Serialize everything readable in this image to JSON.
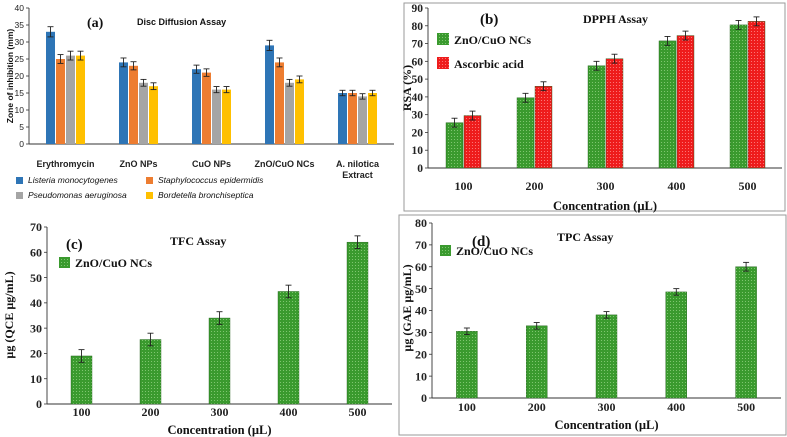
{
  "figure": {
    "panels": [
      {
        "id": "a",
        "tag": "(a)",
        "title": "Disc Diffusion Assay",
        "xlabel": "",
        "ylabel": "Zone of inhibition (mm)",
        "ylim": [
          0,
          40
        ],
        "yticks": [
          0,
          5,
          10,
          15,
          20,
          25,
          30,
          35,
          40
        ],
        "style": "bars-plain",
        "legend_position": "bottom",
        "legend_columns": 2
      },
      {
        "id": "b",
        "tag": "(b)",
        "title": "DPPH Assay",
        "xlabel": "Concentration (µL)",
        "ylabel": "RSA (%)",
        "ylim": [
          0,
          90
        ],
        "yticks": [
          0,
          10,
          20,
          30,
          40,
          50,
          60,
          70,
          80,
          90
        ],
        "style": "bars-dotted",
        "legend_position": "top-left",
        "legend_columns": 1
      },
      {
        "id": "c",
        "tag": "(c)",
        "title": "TFC Assay",
        "xlabel": "Concentration (µL)",
        "ylabel": "µg (QCE µg/mL)",
        "ylim": [
          0,
          70
        ],
        "yticks": [
          0,
          10,
          20,
          30,
          40,
          50,
          60,
          70
        ],
        "style": "bars-dotted",
        "legend_position": "top-left",
        "legend_columns": 1
      },
      {
        "id": "d",
        "tag": "(d)",
        "title": "TPC Assay",
        "xlabel": "Concentration (µL)",
        "ylabel": "µg (GAE µg/mL)",
        "ylim": [
          0,
          80
        ],
        "yticks": [
          0,
          10,
          20,
          30,
          40,
          50,
          60,
          70,
          80
        ],
        "style": "bars-dotted",
        "legend_position": "top-left",
        "legend_columns": 1
      }
    ]
  },
  "chart_data": [
    {
      "type": "bar",
      "panel": "a",
      "title": "Disc Diffusion Assay",
      "xlabel": "",
      "ylabel": "Zone of inhibition (mm)",
      "ylim": [
        0,
        40
      ],
      "categories": [
        "Erythromycin",
        "ZnO NPs",
        "CuO NPs",
        "ZnO/CuO NCs",
        "A. nilotica Extract"
      ],
      "series": [
        {
          "name": "Listeria monocytogenes",
          "color": "#2e75b6",
          "values": [
            33,
            24,
            22,
            29,
            15
          ],
          "errors": [
            1.5,
            1.3,
            1.2,
            1.5,
            0.8
          ]
        },
        {
          "name": "Staphylococcus epidermidis",
          "color": "#ed7d31",
          "values": [
            25,
            23,
            21,
            24,
            15
          ],
          "errors": [
            1.3,
            1.2,
            1.1,
            1.3,
            0.8
          ]
        },
        {
          "name": "Pseudomonas aeruginosa",
          "color": "#a5a5a5",
          "values": [
            26,
            18,
            16,
            18,
            14
          ],
          "errors": [
            1.3,
            1.0,
            0.9,
            1.0,
            0.8
          ]
        },
        {
          "name": "Bordetella bronchiseptica",
          "color": "#ffc000",
          "values": [
            26,
            17,
            16,
            19,
            15
          ],
          "errors": [
            1.3,
            1.0,
            0.9,
            1.0,
            0.8
          ]
        }
      ]
    },
    {
      "type": "bar",
      "panel": "b",
      "title": "DPPH Assay",
      "xlabel": "Concentration (µL)",
      "ylabel": "RSA (%)",
      "ylim": [
        0,
        90
      ],
      "categories": [
        "100",
        "200",
        "300",
        "400",
        "500"
      ],
      "series": [
        {
          "name": "ZnO/CuO NCs",
          "color": "#3a9a2e",
          "values": [
            25.5,
            39.5,
            57.5,
            71.5,
            80.5
          ],
          "errors": [
            2.5,
            2.5,
            2.5,
            2.5,
            2.5
          ]
        },
        {
          "name": "Ascorbic acid",
          "color": "#ee1c1c",
          "values": [
            29.5,
            46,
            61.5,
            74.5,
            82.5
          ],
          "errors": [
            2.5,
            2.5,
            2.5,
            2.5,
            2.5
          ]
        }
      ]
    },
    {
      "type": "bar",
      "panel": "c",
      "title": "TFC Assay",
      "xlabel": "Concentration (µL)",
      "ylabel": "µg (QCE µg/mL)",
      "ylim": [
        0,
        70
      ],
      "categories": [
        "100",
        "200",
        "300",
        "400",
        "500"
      ],
      "series": [
        {
          "name": "ZnO/CuO NCs",
          "color": "#3a9a2e",
          "values": [
            19,
            25.5,
            34,
            44.5,
            64
          ],
          "errors": [
            2.5,
            2.5,
            2.5,
            2.5,
            2.5
          ]
        }
      ]
    },
    {
      "type": "bar",
      "panel": "d",
      "title": "TPC Assay",
      "xlabel": "Concentration (µL)",
      "ylabel": "µg (GAE µg/mL)",
      "ylim": [
        0,
        80
      ],
      "categories": [
        "100",
        "200",
        "300",
        "400",
        "500"
      ],
      "series": [
        {
          "name": "ZnO/CuO NCs",
          "color": "#3a9a2e",
          "values": [
            30.5,
            33,
            38,
            48.5,
            60
          ],
          "errors": [
            1.5,
            1.5,
            1.5,
            1.5,
            2
          ]
        }
      ]
    }
  ]
}
